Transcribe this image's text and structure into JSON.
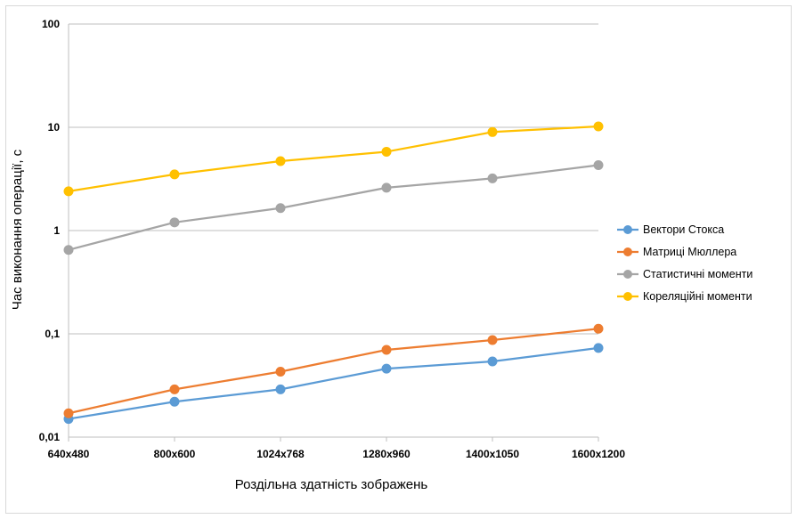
{
  "chart_data": {
    "type": "line",
    "title": "",
    "xlabel": "Роздільна здатність зображень",
    "ylabel": "Час виконання операції, с",
    "y_scale": "log",
    "ylim": [
      0.01,
      100
    ],
    "y_ticks": [
      {
        "value": 0.01,
        "label": "0,01"
      },
      {
        "value": 0.1,
        "label": "0,1"
      },
      {
        "value": 1,
        "label": "1"
      },
      {
        "value": 10,
        "label": "10"
      },
      {
        "value": 100,
        "label": "100"
      }
    ],
    "grid": true,
    "legend_position": "right",
    "categories": [
      "640x480",
      "800x600",
      "1024x768",
      "1280x960",
      "1400x1050",
      "1600x1200"
    ],
    "series": [
      {
        "name": "Вектори Стокса",
        "color": "#5b9bd5",
        "values": [
          0.015,
          0.022,
          0.029,
          0.046,
          0.054,
          0.073
        ]
      },
      {
        "name": "Матриці Мюллера",
        "color": "#ed7d31",
        "values": [
          0.017,
          0.029,
          0.043,
          0.07,
          0.087,
          0.112
        ]
      },
      {
        "name": "Статистичні моменти",
        "color": "#a5a5a5",
        "values": [
          0.65,
          1.2,
          1.65,
          2.6,
          3.2,
          4.3
        ]
      },
      {
        "name": "Кореляційні моменти",
        "color": "#ffc000",
        "values": [
          2.4,
          3.5,
          4.7,
          5.8,
          9.0,
          10.2
        ]
      }
    ]
  }
}
